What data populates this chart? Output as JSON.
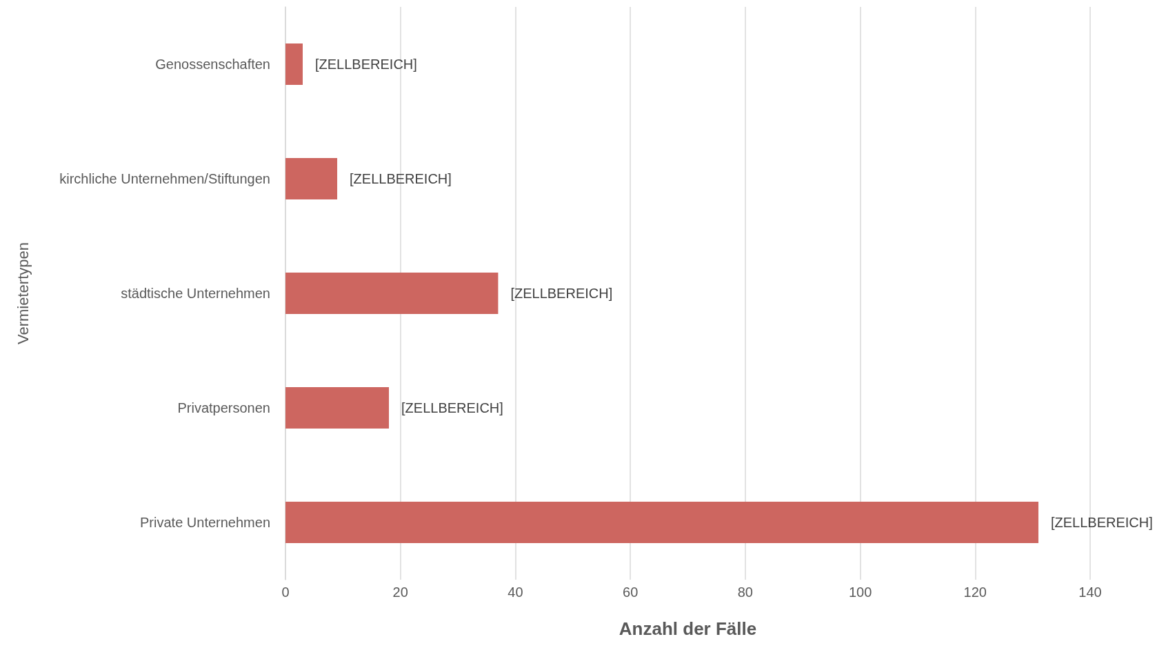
{
  "chart_data": {
    "type": "bar",
    "orientation": "horizontal",
    "xlabel": "Anzahl der Fälle",
    "ylabel": "Vermietertypen",
    "categories": [
      "Genossenschaften",
      "kirchliche Unternehmen/Stiftungen",
      "städtische Unternehmen",
      "Privatpersonen",
      "Private Unternehmen"
    ],
    "values": [
      3,
      9,
      37,
      18,
      131
    ],
    "value_labels": [
      "[ZELLBEREICH]",
      "[ZELLBEREICH]",
      "[ZELLBEREICH]",
      "[ZELLBEREICH]",
      "[ZELLBEREICH]"
    ],
    "color": "#cd6660",
    "xlim": [
      0,
      140
    ],
    "xticks": [
      0,
      20,
      40,
      60,
      80,
      100,
      120,
      140
    ],
    "grid": "x"
  }
}
